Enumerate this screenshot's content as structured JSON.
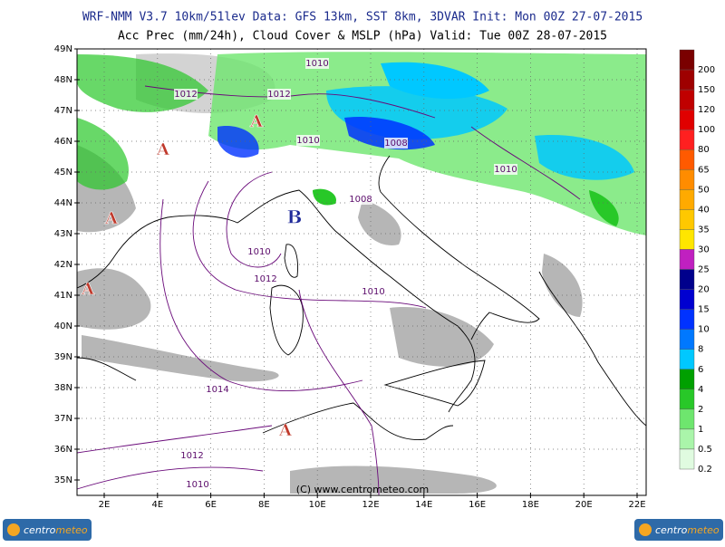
{
  "header": {
    "line1": "WRF-NMM V3.7 10km/51lev  Data: GFS 13km, SST 8km, 3DVAR  Init: Mon 00Z 27-07-2015",
    "line2": "Acc Prec (mm/24h), Cloud Cover & MSLP (hPa)  Valid: Tue 00Z 28-07-2015"
  },
  "map": {
    "lat_labels": [
      "49N",
      "48N",
      "47N",
      "46N",
      "45N",
      "44N",
      "43N",
      "42N",
      "41N",
      "40N",
      "39N",
      "38N",
      "37N",
      "36N",
      "35N"
    ],
    "lon_labels": [
      "2E",
      "4E",
      "6E",
      "8E",
      "10E",
      "12E",
      "14E",
      "16E",
      "18E",
      "20E",
      "22E"
    ],
    "pressure_centers": [
      "A",
      "A",
      "A",
      "A",
      "B",
      "A"
    ],
    "isobar_labels": [
      "1010",
      "1012",
      "1012",
      "1010",
      "1008",
      "1010",
      "1008",
      "1010",
      "1012",
      "1010",
      "1014",
      "1012",
      "1010"
    ],
    "copyright": "(C) www.centrometeo.com"
  },
  "colorbar": {
    "levels": [
      {
        "label": "200",
        "color": "#7a0000"
      },
      {
        "label": "150",
        "color": "#9e0000"
      },
      {
        "label": "120",
        "color": "#c00000"
      },
      {
        "label": "100",
        "color": "#e00000"
      },
      {
        "label": "80",
        "color": "#ff2020"
      },
      {
        "label": "65",
        "color": "#ff5a00"
      },
      {
        "label": "50",
        "color": "#ff8c00"
      },
      {
        "label": "40",
        "color": "#ffaa00"
      },
      {
        "label": "35",
        "color": "#ffc800"
      },
      {
        "label": "30",
        "color": "#ffe600"
      },
      {
        "label": "25",
        "color": "#c020c0"
      },
      {
        "label": "20",
        "color": "#00008c"
      },
      {
        "label": "15",
        "color": "#0000d0"
      },
      {
        "label": "10",
        "color": "#0032ff"
      },
      {
        "label": "8",
        "color": "#0078ff"
      },
      {
        "label": "6",
        "color": "#00c8ff"
      },
      {
        "label": "4",
        "color": "#00a000"
      },
      {
        "label": "2",
        "color": "#28c828"
      },
      {
        "label": "1",
        "color": "#6ee66e"
      },
      {
        "label": "0.5",
        "color": "#aaf5aa"
      },
      {
        "label": "0.2",
        "color": "#e0fbe0"
      }
    ]
  },
  "logos": {
    "left": {
      "a": "centro",
      "b": "meteo"
    },
    "right": {
      "a": "centro",
      "b": "meteo"
    }
  }
}
